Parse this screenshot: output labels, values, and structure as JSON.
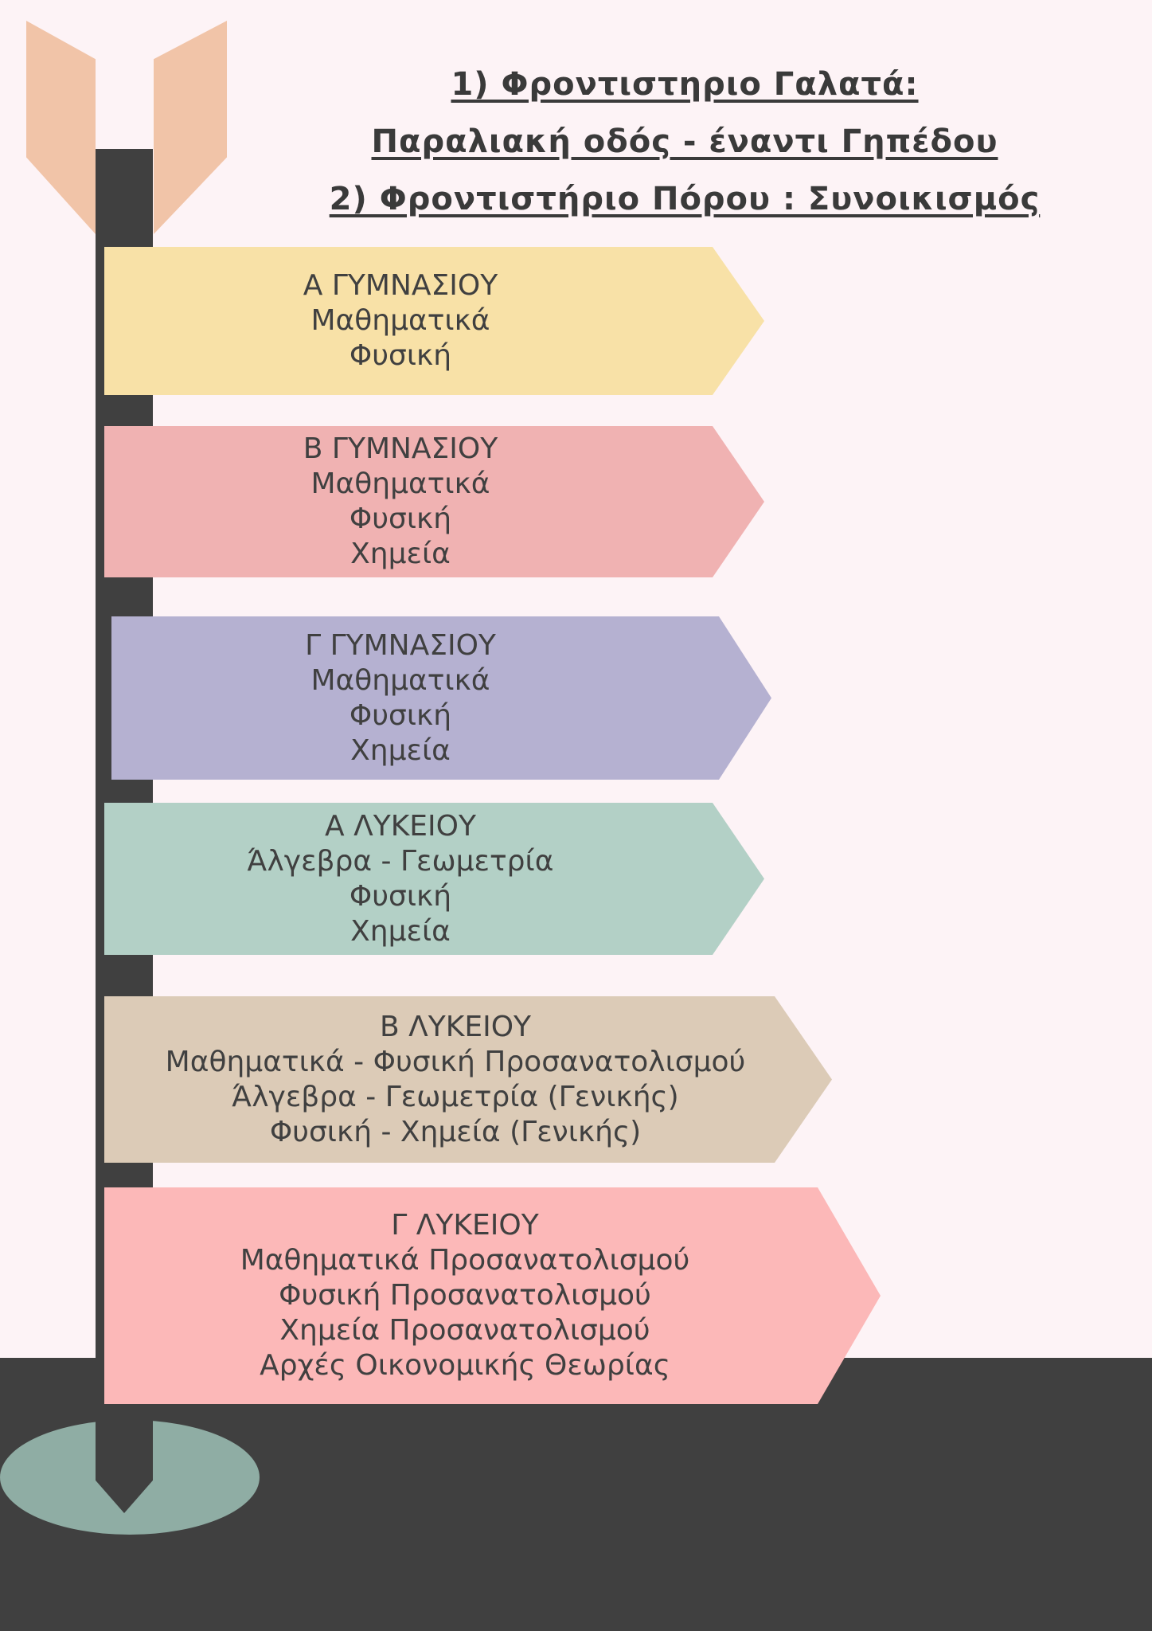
{
  "title": {
    "lines": [
      "1) Φροντιστηριο Γαλατά:",
      "Παραλιακή οδός - έναντι Γηπέδου",
      "2) Φροντιστήριο Πόρου : Συνοικισμός"
    ]
  },
  "signs": [
    {
      "color": "#f8e1a7",
      "lines": [
        "Α ΓΥΜΝΑΣΙΟΥ",
        "Μαθηματικά",
        "Φυσική"
      ]
    },
    {
      "color": "#f0b2b2",
      "lines": [
        "Β ΓΥΜΝΑΣΙΟΥ",
        "Μαθηματικά",
        "Φυσική",
        "Χημεία"
      ]
    },
    {
      "color": "#b5b1d1",
      "lines": [
        "Γ ΓΥΜΝΑΣΙΟΥ",
        "Μαθηματικά",
        "Φυσική",
        "Χημεία"
      ]
    },
    {
      "color": "#b3d0c6",
      "lines": [
        "Α ΛΥΚΕΙΟΥ",
        "Άλγεβρα - Γεωμετρία",
        "Φυσική",
        "Χημεία"
      ]
    },
    {
      "color": "#dccbb7",
      "lines": [
        "Β ΛΥΚΕΙΟΥ",
        "Μαθηματικά - Φυσική Προσανατολισμού",
        "Άλγεβρα - Γεωμετρία (Γενικής)",
        "Φυσική - Χημεία (Γενικής)"
      ]
    },
    {
      "color": "#fcb8b8",
      "lines": [
        "Γ ΛΥΚΕΙΟΥ",
        "Μαθηματικά Προσανατολισμού",
        "Φυσική Προσανατολισμού",
        "Χημεία Προσανατολισμού",
        "Αρχές Οικονομικής Θεωρίας"
      ]
    }
  ]
}
